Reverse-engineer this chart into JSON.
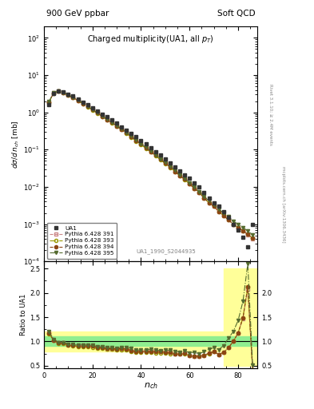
{
  "title_left": "900 GeV ppbar",
  "title_right": "Soft QCD",
  "main_title": "Charged multiplicity(UA1, all p_{T})",
  "ylabel_main": "dσ/d n_{ch} [mb]",
  "ylabel_ratio": "Ratio to UA1",
  "xlabel": "n_{ch}",
  "annotation": "UA1_1990_S2044935",
  "right_label1": "Rivet 3.1.10; ≥ 2.4M events",
  "right_label2": "mcplots.cern.ch [arXiv:1306.3436]",
  "ua1_x": [
    2,
    4,
    6,
    8,
    10,
    12,
    14,
    16,
    18,
    20,
    22,
    24,
    26,
    28,
    30,
    32,
    34,
    36,
    38,
    40,
    42,
    44,
    46,
    48,
    50,
    52,
    54,
    56,
    58,
    60,
    62,
    64,
    66,
    68,
    70,
    72,
    74,
    76,
    78,
    80,
    82,
    84,
    86
  ],
  "ua1_y": [
    1.6,
    3.2,
    3.8,
    3.5,
    3.1,
    2.7,
    2.3,
    1.9,
    1.6,
    1.3,
    1.1,
    0.9,
    0.75,
    0.62,
    0.51,
    0.41,
    0.33,
    0.27,
    0.22,
    0.175,
    0.14,
    0.11,
    0.089,
    0.07,
    0.055,
    0.044,
    0.035,
    0.027,
    0.021,
    0.017,
    0.013,
    0.01,
    0.007,
    0.005,
    0.0038,
    0.003,
    0.0022,
    0.0015,
    0.001,
    0.0007,
    0.00045,
    0.00025,
    0.001
  ],
  "pythia391_x": [
    2,
    4,
    6,
    8,
    10,
    12,
    14,
    16,
    18,
    20,
    22,
    24,
    26,
    28,
    30,
    32,
    34,
    36,
    38,
    40,
    42,
    44,
    46,
    48,
    50,
    52,
    54,
    56,
    58,
    60,
    62,
    64,
    66,
    68,
    70,
    72,
    74,
    76,
    78,
    80,
    82,
    84,
    86
  ],
  "pythia391_y": [
    1.9,
    3.3,
    3.7,
    3.4,
    2.9,
    2.5,
    2.1,
    1.75,
    1.45,
    1.18,
    0.97,
    0.79,
    0.64,
    0.53,
    0.43,
    0.35,
    0.28,
    0.22,
    0.175,
    0.14,
    0.11,
    0.088,
    0.07,
    0.055,
    0.043,
    0.034,
    0.026,
    0.02,
    0.016,
    0.012,
    0.009,
    0.007,
    0.005,
    0.0038,
    0.003,
    0.0022,
    0.0017,
    0.0013,
    0.001,
    0.00082,
    0.00066,
    0.00052,
    0.00041
  ],
  "pythia393_x": [
    2,
    4,
    6,
    8,
    10,
    12,
    14,
    16,
    18,
    20,
    22,
    24,
    26,
    28,
    30,
    32,
    34,
    36,
    38,
    40,
    42,
    44,
    46,
    48,
    50,
    52,
    54,
    56,
    58,
    60,
    62,
    64,
    66,
    68,
    70,
    72,
    74,
    76,
    78,
    80,
    82,
    84,
    86
  ],
  "pythia393_y": [
    1.85,
    3.25,
    3.65,
    3.35,
    2.85,
    2.45,
    2.05,
    1.7,
    1.42,
    1.15,
    0.94,
    0.77,
    0.63,
    0.52,
    0.42,
    0.34,
    0.27,
    0.215,
    0.17,
    0.135,
    0.108,
    0.086,
    0.068,
    0.053,
    0.042,
    0.033,
    0.026,
    0.02,
    0.0155,
    0.012,
    0.009,
    0.007,
    0.005,
    0.0037,
    0.003,
    0.0022,
    0.0017,
    0.0013,
    0.001,
    0.00082,
    0.00067,
    0.00053,
    0.00042
  ],
  "pythia394_x": [
    2,
    4,
    6,
    8,
    10,
    12,
    14,
    16,
    18,
    20,
    22,
    24,
    26,
    28,
    30,
    32,
    34,
    36,
    38,
    40,
    42,
    44,
    46,
    48,
    50,
    52,
    54,
    56,
    58,
    60,
    62,
    64,
    66,
    68,
    70,
    72,
    74,
    76,
    78,
    80,
    82,
    84,
    86
  ],
  "pythia394_y": [
    1.88,
    3.28,
    3.68,
    3.38,
    2.88,
    2.48,
    2.08,
    1.73,
    1.44,
    1.17,
    0.96,
    0.78,
    0.64,
    0.53,
    0.43,
    0.35,
    0.28,
    0.22,
    0.175,
    0.14,
    0.11,
    0.088,
    0.07,
    0.055,
    0.043,
    0.034,
    0.026,
    0.02,
    0.016,
    0.012,
    0.009,
    0.007,
    0.005,
    0.0038,
    0.003,
    0.0022,
    0.0017,
    0.0013,
    0.001,
    0.00082,
    0.00067,
    0.00053,
    0.00042
  ],
  "pythia395_x": [
    2,
    4,
    6,
    8,
    10,
    12,
    14,
    16,
    18,
    20,
    22,
    24,
    26,
    28,
    30,
    32,
    34,
    36,
    38,
    40,
    42,
    44,
    46,
    48,
    50,
    52,
    54,
    56,
    58,
    60,
    62,
    64,
    66,
    68,
    70,
    72,
    74,
    76,
    78,
    80,
    82,
    84,
    86
  ],
  "pythia395_y": [
    1.92,
    3.35,
    3.72,
    3.42,
    2.92,
    2.52,
    2.12,
    1.77,
    1.47,
    1.2,
    0.98,
    0.8,
    0.65,
    0.54,
    0.44,
    0.36,
    0.29,
    0.23,
    0.18,
    0.145,
    0.115,
    0.092,
    0.073,
    0.057,
    0.045,
    0.036,
    0.028,
    0.021,
    0.017,
    0.013,
    0.01,
    0.0075,
    0.0055,
    0.0042,
    0.0033,
    0.0025,
    0.002,
    0.0016,
    0.0012,
    0.001,
    0.00082,
    0.00065,
    0.00052
  ],
  "ratio391_y": [
    1.19,
    1.03,
    0.97,
    0.97,
    0.94,
    0.93,
    0.91,
    0.92,
    0.91,
    0.91,
    0.88,
    0.88,
    0.85,
    0.85,
    0.84,
    0.85,
    0.85,
    0.81,
    0.8,
    0.8,
    0.79,
    0.8,
    0.79,
    0.79,
    0.78,
    0.77,
    0.74,
    0.74,
    0.76,
    0.71,
    0.69,
    0.7,
    0.71,
    0.76,
    0.79,
    0.73,
    0.77,
    0.87,
    1.0,
    1.17,
    1.47,
    2.08,
    0.41
  ],
  "ratio393_y": [
    1.16,
    1.02,
    0.96,
    0.96,
    0.92,
    0.91,
    0.89,
    0.89,
    0.89,
    0.88,
    0.855,
    0.856,
    0.84,
    0.84,
    0.82,
    0.83,
    0.82,
    0.8,
    0.77,
    0.77,
    0.77,
    0.78,
    0.76,
    0.76,
    0.76,
    0.75,
    0.74,
    0.74,
    0.74,
    0.71,
    0.69,
    0.7,
    0.71,
    0.74,
    0.79,
    0.73,
    0.77,
    0.87,
    1.0,
    1.17,
    1.49,
    2.12,
    0.42
  ],
  "ratio394_y": [
    1.175,
    1.025,
    0.968,
    0.966,
    0.929,
    0.919,
    0.904,
    0.911,
    0.9,
    0.9,
    0.873,
    0.867,
    0.853,
    0.855,
    0.843,
    0.854,
    0.848,
    0.815,
    0.795,
    0.8,
    0.786,
    0.8,
    0.787,
    0.786,
    0.782,
    0.773,
    0.743,
    0.741,
    0.762,
    0.706,
    0.692,
    0.7,
    0.714,
    0.76,
    0.789,
    0.733,
    0.773,
    0.867,
    1.0,
    1.171,
    1.489,
    2.12,
    0.42
  ],
  "ratio395_y": [
    1.2,
    1.047,
    0.979,
    0.977,
    0.942,
    0.933,
    0.922,
    0.932,
    0.919,
    0.923,
    0.891,
    0.889,
    0.867,
    0.871,
    0.863,
    0.878,
    0.879,
    0.852,
    0.818,
    0.829,
    0.821,
    0.836,
    0.821,
    0.814,
    0.818,
    0.818,
    0.8,
    0.778,
    0.81,
    0.765,
    0.769,
    0.75,
    0.786,
    0.84,
    0.868,
    0.833,
    0.909,
    1.067,
    1.2,
    1.43,
    1.822,
    2.6,
    0.52
  ],
  "green_band_x": [
    0,
    2,
    4,
    6,
    8,
    10,
    12,
    14,
    16,
    18,
    20,
    22,
    24,
    26,
    28,
    30,
    32,
    34,
    36,
    38,
    40,
    42,
    44,
    46,
    48,
    50,
    52,
    54,
    56,
    58,
    60,
    62,
    64,
    66,
    68,
    70,
    72,
    74,
    76,
    78,
    80,
    82,
    84,
    86,
    88
  ],
  "green_band_lo": [
    0.9,
    0.9,
    0.9,
    0.9,
    0.9,
    0.9,
    0.9,
    0.9,
    0.9,
    0.9,
    0.9,
    0.9,
    0.9,
    0.9,
    0.9,
    0.9,
    0.9,
    0.9,
    0.9,
    0.9,
    0.9,
    0.9,
    0.9,
    0.9,
    0.9,
    0.9,
    0.9,
    0.9,
    0.9,
    0.9,
    0.9,
    0.9,
    0.9,
    0.9,
    0.9,
    0.9,
    0.9,
    0.9,
    0.9,
    0.9,
    0.9,
    0.9,
    0.9,
    0.9,
    0.9
  ],
  "green_band_hi": [
    1.1,
    1.1,
    1.1,
    1.1,
    1.1,
    1.1,
    1.1,
    1.1,
    1.1,
    1.1,
    1.1,
    1.1,
    1.1,
    1.1,
    1.1,
    1.1,
    1.1,
    1.1,
    1.1,
    1.1,
    1.1,
    1.1,
    1.1,
    1.1,
    1.1,
    1.1,
    1.1,
    1.1,
    1.1,
    1.1,
    1.1,
    1.1,
    1.1,
    1.1,
    1.1,
    1.1,
    1.1,
    1.1,
    1.1,
    1.1,
    1.1,
    1.1,
    1.1,
    1.1,
    1.1
  ],
  "yellow_band_x": [
    0,
    2,
    4,
    6,
    8,
    10,
    12,
    14,
    16,
    18,
    20,
    22,
    24,
    26,
    28,
    30,
    32,
    34,
    36,
    38,
    40,
    42,
    44,
    46,
    48,
    50,
    52,
    54,
    56,
    58,
    60,
    62,
    64,
    66,
    68,
    70,
    72,
    74,
    76,
    78,
    80,
    82,
    84,
    86,
    88
  ],
  "yellow_band_lo": [
    0.8,
    0.8,
    0.8,
    0.8,
    0.8,
    0.8,
    0.8,
    0.8,
    0.8,
    0.8,
    0.8,
    0.8,
    0.8,
    0.8,
    0.8,
    0.8,
    0.8,
    0.8,
    0.8,
    0.8,
    0.8,
    0.8,
    0.8,
    0.8,
    0.8,
    0.8,
    0.8,
    0.8,
    0.8,
    0.8,
    0.8,
    0.8,
    0.8,
    0.8,
    0.8,
    0.8,
    0.8,
    0.8,
    0.5,
    0.5,
    0.5,
    0.5,
    0.5,
    0.5,
    0.5
  ],
  "yellow_band_hi": [
    1.2,
    1.2,
    1.2,
    1.2,
    1.2,
    1.2,
    1.2,
    1.2,
    1.2,
    1.2,
    1.2,
    1.2,
    1.2,
    1.2,
    1.2,
    1.2,
    1.2,
    1.2,
    1.2,
    1.2,
    1.2,
    1.2,
    1.2,
    1.2,
    1.2,
    1.2,
    1.2,
    1.2,
    1.2,
    1.2,
    1.2,
    1.2,
    1.2,
    1.2,
    1.2,
    1.2,
    1.2,
    1.2,
    2.5,
    2.5,
    2.5,
    2.5,
    2.5,
    2.5,
    2.5
  ],
  "color_ua1": "#333333",
  "color_p391": "#cc8888",
  "color_p393": "#999900",
  "color_p394": "#8b4513",
  "color_p395": "#556b2f",
  "color_green": "#90ee90",
  "color_yellow": "#ffff99",
  "xlim": [
    0,
    88
  ],
  "ylim_main": [
    0.0001,
    200
  ],
  "ylim_ratio": [
    0.45,
    2.65
  ]
}
